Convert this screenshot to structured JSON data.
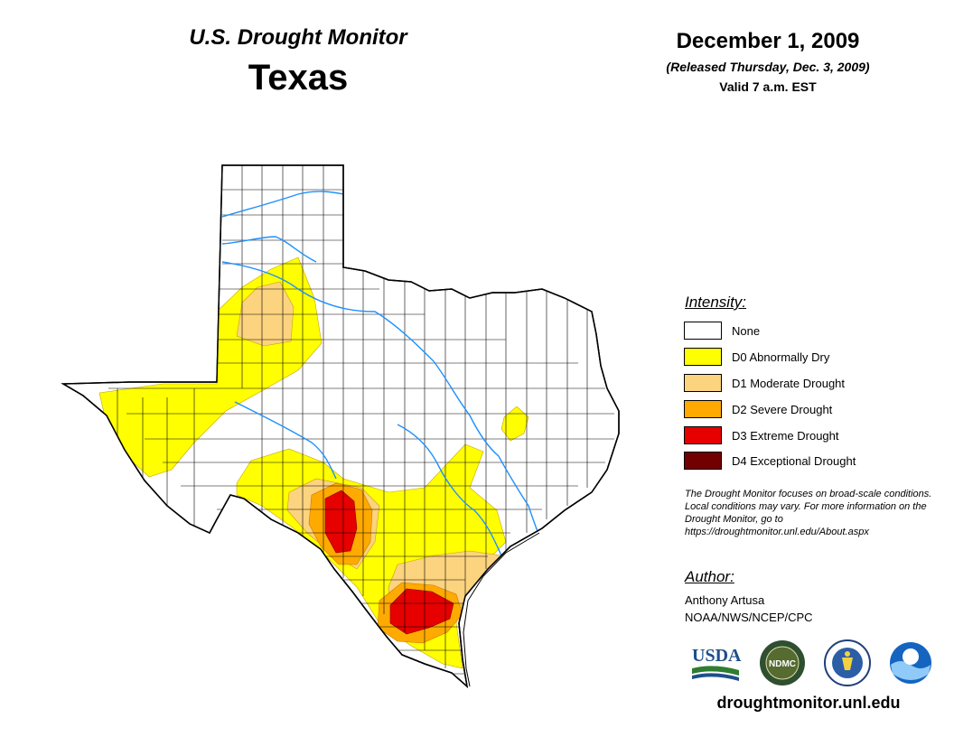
{
  "header": {
    "title": "U.S. Drought Monitor",
    "state": "Texas",
    "date": "December 1, 2009",
    "released": "(Released Thursday, Dec. 3, 2009)",
    "valid": "Valid 7 a.m. EST"
  },
  "legend": {
    "heading": "Intensity:",
    "items": [
      {
        "label": "None",
        "color": "#ffffff"
      },
      {
        "label": "D0 Abnormally Dry",
        "color": "#ffff00"
      },
      {
        "label": "D1 Moderate Drought",
        "color": "#fcd37f"
      },
      {
        "label": "D2 Severe Drought",
        "color": "#ffaa00"
      },
      {
        "label": "D3 Extreme Drought",
        "color": "#e60000"
      },
      {
        "label": "D4 Exceptional Drought",
        "color": "#730000"
      }
    ]
  },
  "note": "The Drought Monitor focuses on broad-scale conditions. Local conditions may vary. For more information on the Drought Monitor, go to https://droughtmonitor.unl.edu/About.aspx",
  "author": {
    "heading": "Author:",
    "name": "Anthony Artusa",
    "org": "NOAA/NWS/NCEP/CPC"
  },
  "logos": [
    "USDA",
    "NDMC",
    "commerce-seal",
    "NOAA"
  ],
  "website": "droughtmonitor.unl.edu",
  "colors": {
    "none": "#ffffff",
    "d0": "#ffff00",
    "d1": "#fcd37f",
    "d2": "#ffaa00",
    "d3": "#e60000",
    "d4": "#730000",
    "rivers": "#1e90ff",
    "county_lines": "#000000"
  }
}
